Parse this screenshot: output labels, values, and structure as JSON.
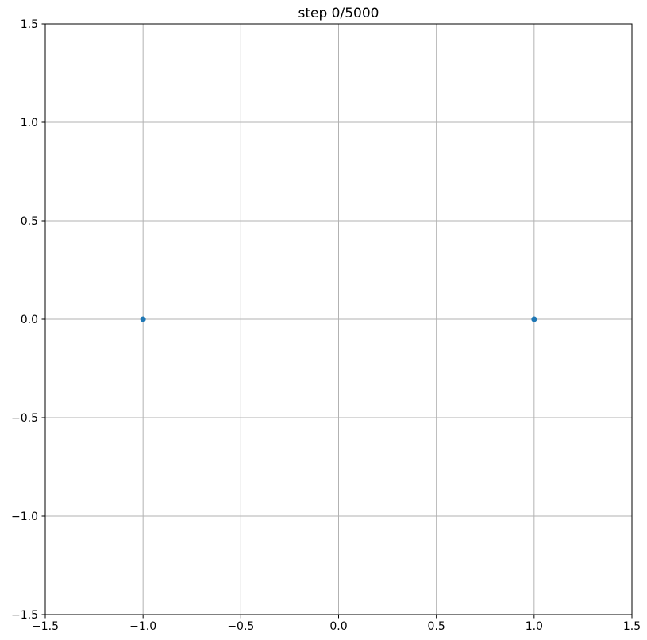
{
  "chart_data": {
    "type": "scatter",
    "title": "step 0/5000",
    "xlabel": "",
    "ylabel": "",
    "xlim": [
      -1.5,
      1.5
    ],
    "ylim": [
      -1.5,
      1.5
    ],
    "xticks": [
      -1.5,
      -1.0,
      -0.5,
      0.0,
      0.5,
      1.0,
      1.5
    ],
    "yticks": [
      -1.5,
      -1.0,
      -0.5,
      0.0,
      0.5,
      1.0,
      1.5
    ],
    "xtick_labels": [
      "−1.5",
      "−1.0",
      "−0.5",
      "0.0",
      "0.5",
      "1.0",
      "1.5"
    ],
    "ytick_labels": [
      "−1.5",
      "−1.0",
      "−0.5",
      "0.0",
      "0.5",
      "1.0",
      "1.5"
    ],
    "grid": true,
    "legend": null,
    "points": [
      {
        "x": -1.0,
        "y": 0.0
      },
      {
        "x": 1.0,
        "y": 0.0
      }
    ],
    "marker_color": "#1f77b4",
    "grid_color": "#b2b2b2",
    "spine_color": "#000000",
    "tick_color": "#000000",
    "background_color": "#ffffff"
  }
}
